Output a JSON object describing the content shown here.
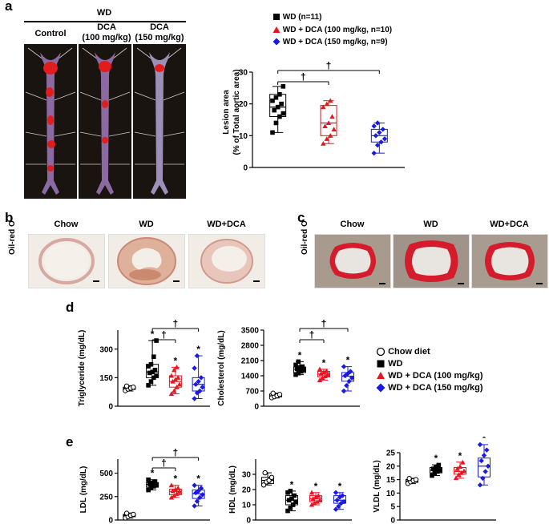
{
  "panel_a": {
    "label": "a",
    "group_header": "WD",
    "columns": [
      "Control",
      "DCA\n(100 mg/kg)",
      "DCA\n(150 mg/kg)"
    ],
    "legend": [
      "WD (n=11)",
      "WD + DCA (100 mg/kg, n=10)",
      "WD + DCA (150 mg/kg, n=9)"
    ],
    "ylabel_line1": "Lesion area",
    "ylabel_line2": "(% of Total aortic area)",
    "sig": [
      "†",
      "†"
    ]
  },
  "panel_b": {
    "label": "b",
    "stain": "Oil-red O",
    "columns": [
      "Chow",
      "WD",
      "WD+DCA"
    ]
  },
  "panel_c": {
    "label": "c",
    "stain": "Oil-red O",
    "columns": [
      "Chow",
      "WD",
      "WD+DCA"
    ]
  },
  "panel_d": {
    "label": "d",
    "legend": [
      "Chow diet",
      "WD",
      "WD + DCA (100 mg/kg)",
      "WD + DCA (150 mg/kg)"
    ]
  },
  "panel_e": {
    "label": "e"
  },
  "colors": {
    "black": "#000000",
    "red": "#e8141e",
    "blue": "#1a1ae0"
  },
  "chart_data": [
    {
      "id": "lesion",
      "type": "box",
      "ylabel": "Lesion area (% of Total aortic area)",
      "ylim": [
        0,
        30
      ],
      "yticks": [
        0,
        10,
        20,
        30
      ],
      "groups": [
        {
          "name": "WD (n=11)",
          "color": "black",
          "marker": "square",
          "min": 11,
          "q1": 16,
          "median": 19,
          "q3": 23,
          "max": 25.5,
          "points": [
            11,
            14,
            16,
            17,
            18,
            19,
            20,
            21,
            22,
            23,
            25.5
          ]
        },
        {
          "name": "WD + DCA (100 mg/kg, n=10)",
          "color": "red",
          "marker": "triangle",
          "min": 7.5,
          "q1": 10,
          "median": 14,
          "q3": 19.5,
          "max": 21,
          "points": [
            7.5,
            9,
            10,
            12,
            13,
            14,
            16,
            19,
            20,
            21
          ]
        },
        {
          "name": "WD + DCA (150 mg/kg, n=9)",
          "color": "blue",
          "marker": "diamond",
          "min": 4.5,
          "q1": 8,
          "median": 10,
          "q3": 12,
          "max": 14,
          "points": [
            4.5,
            7,
            8,
            9,
            10,
            11,
            12,
            13,
            14
          ]
        }
      ],
      "sig": [
        "†",
        "†"
      ]
    },
    {
      "id": "tg",
      "type": "box",
      "ylabel": "Triglyceride (mg/dL)",
      "ylim": [
        0,
        400
      ],
      "yticks": [
        0,
        150,
        300
      ],
      "tick_labels": [
        "0",
        "150",
        "300"
      ],
      "groups": [
        {
          "name": "Chow diet",
          "color": "black",
          "marker": "circle",
          "min": 80,
          "q1": 88,
          "median": 95,
          "q3": 100,
          "max": 108,
          "points": [
            82,
            90,
            95,
            100,
            106
          ]
        },
        {
          "name": "WD",
          "color": "black",
          "marker": "square",
          "min": 110,
          "q1": 150,
          "median": 180,
          "q3": 220,
          "max": 345,
          "points": [
            110,
            130,
            150,
            160,
            175,
            180,
            190,
            210,
            220,
            260,
            345
          ]
        },
        {
          "name": "WD + DCA (100 mg/kg)",
          "color": "red",
          "marker": "triangle",
          "min": 65,
          "q1": 100,
          "median": 130,
          "q3": 160,
          "max": 205,
          "points": [
            65,
            80,
            100,
            115,
            130,
            140,
            150,
            160,
            190,
            205
          ]
        },
        {
          "name": "WD + DCA (150 mg/kg)",
          "color": "blue",
          "marker": "diamond",
          "min": 40,
          "q1": 80,
          "median": 115,
          "q3": 150,
          "max": 265,
          "points": [
            40,
            70,
            80,
            100,
            115,
            130,
            150,
            200,
            265
          ]
        }
      ],
      "stars": [
        "",
        "*",
        "*",
        "*"
      ],
      "sig": [
        "†",
        "†"
      ]
    },
    {
      "id": "chol",
      "type": "box",
      "ylabel": "Cholesterol (mg/dL)",
      "ylim": [
        0,
        3500
      ],
      "yticks": [
        0,
        700,
        1400,
        2100,
        2800,
        3500
      ],
      "tick_labels": [
        "0",
        "700",
        "1400",
        "2100",
        "2800",
        "3500"
      ],
      "groups": [
        {
          "name": "Chow diet",
          "color": "black",
          "marker": "circle",
          "min": 380,
          "q1": 430,
          "median": 480,
          "q3": 560,
          "max": 600,
          "points": [
            390,
            440,
            480,
            540,
            600
          ]
        },
        {
          "name": "WD",
          "color": "black",
          "marker": "square",
          "min": 1450,
          "q1": 1550,
          "median": 1700,
          "q3": 1800,
          "max": 2050,
          "points": [
            1450,
            1520,
            1600,
            1680,
            1720,
            1780,
            1820,
            1900,
            2050
          ]
        },
        {
          "name": "WD + DCA (100 mg/kg)",
          "color": "red",
          "marker": "triangle",
          "min": 1200,
          "q1": 1350,
          "median": 1480,
          "q3": 1600,
          "max": 1700,
          "points": [
            1200,
            1300,
            1380,
            1450,
            1500,
            1560,
            1620,
            1700
          ]
        },
        {
          "name": "WD + DCA (150 mg/kg)",
          "color": "blue",
          "marker": "diamond",
          "min": 700,
          "q1": 1150,
          "median": 1380,
          "q3": 1550,
          "max": 1820,
          "points": [
            700,
            950,
            1150,
            1300,
            1400,
            1500,
            1600,
            1820
          ]
        }
      ],
      "stars": [
        "",
        "*",
        "*",
        "*"
      ],
      "sig": [
        "†",
        "†"
      ]
    },
    {
      "id": "ldl",
      "type": "box",
      "ylabel": "LDL (mg/dL)",
      "ylim": [
        0,
        650
      ],
      "yticks": [
        0,
        250,
        500
      ],
      "tick_labels": [
        "0",
        "250",
        "500"
      ],
      "groups": [
        {
          "name": "Chow diet",
          "color": "black",
          "marker": "circle",
          "min": 20,
          "q1": 35,
          "median": 50,
          "q3": 60,
          "max": 75,
          "points": [
            22,
            35,
            50,
            60,
            72
          ]
        },
        {
          "name": "WD",
          "color": "black",
          "marker": "square",
          "min": 320,
          "q1": 350,
          "median": 380,
          "q3": 400,
          "max": 430,
          "points": [
            320,
            345,
            360,
            375,
            385,
            395,
            410,
            430
          ]
        },
        {
          "name": "WD + DCA (100 mg/kg)",
          "color": "red",
          "marker": "triangle",
          "min": 240,
          "q1": 270,
          "median": 305,
          "q3": 330,
          "max": 370,
          "points": [
            240,
            260,
            280,
            300,
            310,
            325,
            340,
            370
          ]
        },
        {
          "name": "WD + DCA (150 mg/kg)",
          "color": "blue",
          "marker": "diamond",
          "min": 150,
          "q1": 230,
          "median": 280,
          "q3": 320,
          "max": 370,
          "points": [
            150,
            200,
            240,
            270,
            290,
            310,
            340,
            370
          ]
        }
      ],
      "stars": [
        "",
        "*",
        "*",
        "*"
      ],
      "sig": [
        "†",
        "†"
      ]
    },
    {
      "id": "hdl",
      "type": "box",
      "ylabel": "HDL (mg/dL)",
      "ylim": [
        0,
        40
      ],
      "yticks": [
        0,
        10,
        20,
        30
      ],
      "tick_labels": [
        "0",
        "10",
        "20",
        "30"
      ],
      "groups": [
        {
          "name": "Chow diet",
          "color": "black",
          "marker": "circle",
          "min": 23,
          "q1": 24,
          "median": 26,
          "q3": 28,
          "max": 31,
          "points": [
            23,
            25,
            26,
            28,
            31
          ]
        },
        {
          "name": "WD",
          "color": "black",
          "marker": "square",
          "min": 6,
          "q1": 10,
          "median": 13,
          "q3": 16,
          "max": 19,
          "points": [
            6,
            8,
            10,
            12,
            13,
            14,
            16,
            18,
            19
          ]
        },
        {
          "name": "WD + DCA (100 mg/kg)",
          "color": "red",
          "marker": "triangle",
          "min": 10,
          "q1": 12,
          "median": 14,
          "q3": 16,
          "max": 18,
          "points": [
            10,
            11,
            12,
            13,
            14,
            15,
            16,
            18
          ]
        },
        {
          "name": "WD + DCA (150 mg/kg)",
          "color": "blue",
          "marker": "diamond",
          "min": 7,
          "q1": 11,
          "median": 13,
          "q3": 16,
          "max": 18,
          "points": [
            7,
            9,
            11,
            12,
            13,
            15,
            16,
            18
          ]
        }
      ],
      "stars": [
        "",
        "*",
        "*",
        "*"
      ]
    },
    {
      "id": "vldl",
      "type": "box",
      "ylabel": "VLDL (mg/dL)",
      "ylim": [
        0,
        25
      ],
      "yticks": [
        0,
        5,
        10,
        15,
        20,
        25
      ],
      "tick_labels": [
        "0",
        "5",
        "10",
        "15",
        "20",
        "25"
      ],
      "groups": [
        {
          "name": "Chow diet",
          "color": "black",
          "marker": "circle",
          "min": 13.5,
          "q1": 14,
          "median": 14.5,
          "q3": 15,
          "max": 15.5,
          "points": [
            13.6,
            14.2,
            14.6,
            15,
            15.4
          ]
        },
        {
          "name": "WD",
          "color": "black",
          "marker": "square",
          "min": 16.5,
          "q1": 17.5,
          "median": 18.5,
          "q3": 19.5,
          "max": 20.5,
          "points": [
            16.5,
            17.4,
            18,
            18.5,
            19,
            19.6,
            20.4
          ]
        },
        {
          "name": "WD + DCA (100 mg/kg)",
          "color": "red",
          "marker": "triangle",
          "min": 15.5,
          "q1": 17,
          "median": 18,
          "q3": 19.5,
          "max": 21.5,
          "points": [
            15.6,
            16.8,
            17.5,
            18.2,
            19,
            19.8,
            21.4
          ]
        },
        {
          "name": "WD + DCA (150 mg/kg)",
          "color": "blue",
          "marker": "diamond",
          "min": 13,
          "q1": 16,
          "median": 20,
          "q3": 23,
          "max": 28,
          "points": [
            13,
            15.5,
            18,
            20,
            22,
            24,
            26,
            28
          ]
        }
      ],
      "stars": [
        "",
        "*",
        "*",
        "*"
      ]
    }
  ]
}
